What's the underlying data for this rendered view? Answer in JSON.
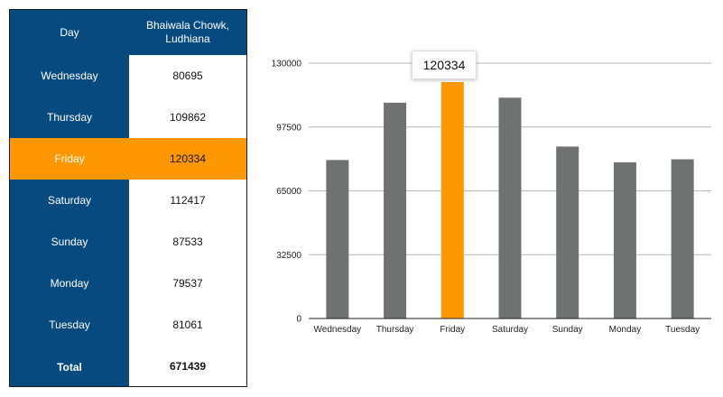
{
  "table": {
    "header": {
      "day": "Day",
      "value": "Bhaiwala Chowk, Ludhiana"
    },
    "rows": [
      {
        "day": "Wednesday",
        "value": "80695"
      },
      {
        "day": "Thursday",
        "value": "109862"
      },
      {
        "day": "Friday",
        "value": "120334"
      },
      {
        "day": "Saturday",
        "value": "112417"
      },
      {
        "day": "Sunday",
        "value": "87533"
      },
      {
        "day": "Monday",
        "value": "79537"
      },
      {
        "day": "Tuesday",
        "value": "81061"
      }
    ],
    "total": {
      "label": "Total",
      "value": "671439"
    }
  },
  "chart_data": {
    "type": "bar",
    "categories": [
      "Wednesday",
      "Thursday",
      "Friday",
      "Saturday",
      "Sunday",
      "Monday",
      "Tuesday"
    ],
    "values": [
      80695,
      109862,
      120334,
      112417,
      87533,
      79537,
      81061
    ],
    "ylim": [
      0,
      130000
    ],
    "yticks": [
      0,
      32500,
      65000,
      97500,
      130000
    ],
    "grid": true,
    "highlight_category": "Friday",
    "tooltip": "120334",
    "colors": {
      "bar": "#6e7370",
      "highlight": "#ff9800",
      "grid": "#b8b8b8",
      "axis": "#222222"
    }
  },
  "colors": {
    "table_dark": "#064a80",
    "table_highlight": "#ff9800"
  }
}
